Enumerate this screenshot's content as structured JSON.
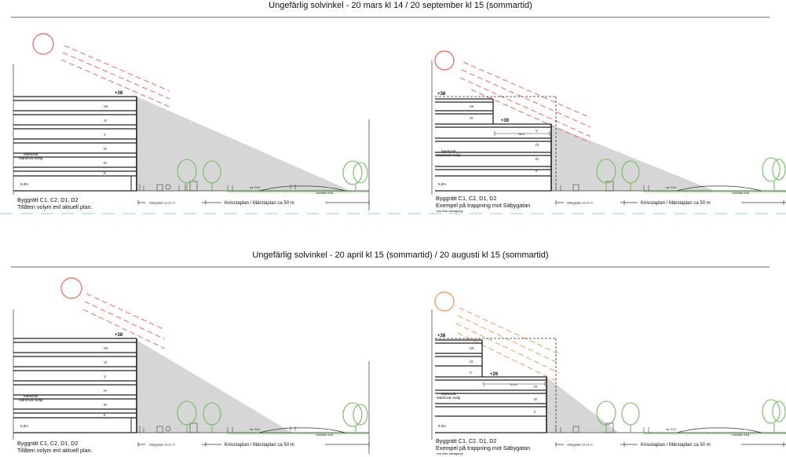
{
  "panels": [
    {
      "title": "Ungefärlig solvinkel  -  20 mars kl 14 / 20 september kl 15 (sommartid)",
      "left": {
        "top_elev": "+38",
        "floor_labels": [
          "VII",
          "VI",
          "V",
          "IV",
          "III",
          "II"
        ],
        "ground_label_1": "Marknivå",
        "ground_label_2": "Marknivå nivåp",
        "ground_elev": "5,0m",
        "caption_1": "Byggrätt C1, C2, D1, D2",
        "caption_2": "Tillåten volym enl aktuell plan."
      },
      "right": {
        "top_elev": "+38",
        "step_elev": "+30",
        "step_width": "18 m",
        "floor_labels": [
          "VII",
          "VI",
          "V",
          "IV",
          "III",
          "II"
        ],
        "ground_label_1": "Marknivå",
        "ground_label_2": "Marknivå nivåp",
        "ground_elev": "5,0m",
        "caption_1": "Byggrätt C1, C2, D1, D2",
        "caption_2": "Exempel på trappning mot Säbygatan",
        "caption_3": "och utan utkragning."
      },
      "dim_left": "Säbygatan ca 21 m",
      "dim_right": "Knivstaplan / Märstaplan  ca 50 m",
      "path_label": "ca +0,8",
      "slope_label": "Lekslänt nivå"
    },
    {
      "title": "Ungefärlig solvinkel  -  20 april kl 15 (sommartid)  / 20 augusti kl 15 (sommartid)",
      "left": {
        "top_elev": "+38",
        "floor_labels": [
          "VII",
          "VI",
          "V",
          "IV",
          "III",
          "II"
        ],
        "ground_label_1": "Marknivå",
        "ground_label_2": "Marknivå nivåp",
        "ground_elev": "5,0m",
        "caption_1": "Byggrätt C1, C2, D1, D2",
        "caption_2": "Tillåten volym enl aktuell plan."
      },
      "right": {
        "top_elev": "+38",
        "step_elev": "+26",
        "step_width": "21 m",
        "floor_labels": [
          "VII",
          "VI",
          "V",
          "IV",
          "III",
          "II"
        ],
        "ground_label_1": "Marknivå",
        "ground_label_2": "Marknivå nivåp",
        "ground_elev": "5,0m",
        "caption_1": "Byggrätt C1, C2, D1, D2",
        "caption_2": "Exempel på trappning mot Säbygatan",
        "caption_3": "och utan utkragning."
      },
      "dim_left": "Säbygatan ca 21 m",
      "dim_right": "Knivstaplan / Märstaplan  ca 50 m",
      "path_label": "ca +0,8",
      "slope_label": "Lekslänt nivå"
    }
  ],
  "colors": {
    "sun_red": "#f07a6a",
    "sun_orange": "#f4a46a",
    "shadow": "#d6d6d6",
    "tree": "#6fbf5a",
    "grass": "#5cc14a",
    "divider": "#a9d8ee"
  }
}
